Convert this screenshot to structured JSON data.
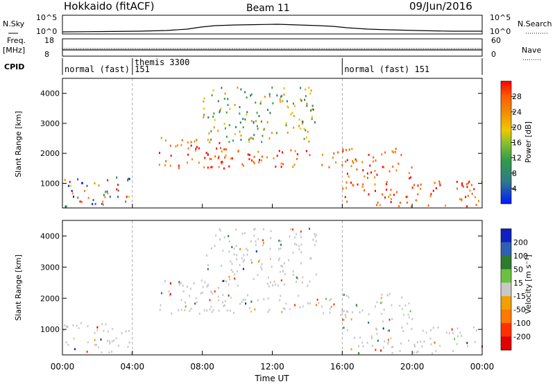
{
  "header": {
    "station": "Hokkaido (fitACF)",
    "beam": "Beam 11",
    "date": "09/Jun/2016"
  },
  "strip_labels": {
    "nsky": "N.Sky",
    "nsearch": "N.Search",
    "freq_line1": "Freq.",
    "freq_line2": "[MHz]",
    "nave": "Nave",
    "cpid": "CPID",
    "nsky_ticks": [
      "10^5",
      "10^0"
    ],
    "nsearch_ticks": [
      "10^5",
      "10^0"
    ],
    "freq_ticks": [
      "18",
      "8"
    ],
    "nave_ticks": [
      "60",
      "0"
    ]
  },
  "cpid_segments": [
    {
      "label": "normal (fast) 151",
      "start_hour": 0,
      "end_hour": 4
    },
    {
      "label": "themis 3300",
      "start_hour": 4,
      "end_hour": 16
    },
    {
      "label": "normal (fast) 151",
      "start_hour": 16,
      "end_hour": 24
    }
  ],
  "x_axis": {
    "label": "Time UT",
    "ticks": [
      "00:00",
      "04:00",
      "08:00",
      "12:00",
      "16:00",
      "20:00",
      "00:00"
    ],
    "range_hours": [
      0,
      24
    ]
  },
  "power_panel": {
    "ylabel": "Slant Range [km]",
    "yticks": [
      1000,
      2000,
      3000,
      4000
    ],
    "ylim": [
      180,
      4500
    ],
    "colorbar_label": "Power [dB]",
    "colorbar_ticks": [
      "4",
      "8",
      "12",
      "16",
      "20",
      "24",
      "28"
    ],
    "colors": [
      "#0018ff",
      "#3050c8",
      "#2f7a6a",
      "#34a044",
      "#e8c000",
      "#f08c00",
      "#ff5a00",
      "#ff0000"
    ]
  },
  "velocity_panel": {
    "ylabel": "Slant Range [km]",
    "yticks": [
      1000,
      2000,
      3000,
      4000
    ],
    "ylim": [
      180,
      4500
    ],
    "colorbar_label": "Velocity [m s⁻¹]",
    "colorbar_ticks": [
      "200",
      "100",
      "50",
      "15",
      "-15",
      "-50",
      "-100",
      "-200"
    ],
    "colors": [
      "#1020c0",
      "#2f60b0",
      "#2e7a30",
      "#6cc040",
      "#c8c8c8",
      "#f0a000",
      "#ff7800",
      "#ff3000",
      "#e00000"
    ]
  },
  "chart_data": {
    "type": "heatmap",
    "x_unit": "hour UT",
    "y_unit": "slant range km",
    "power_regions": [
      {
        "t0": 0.0,
        "t1": 4.0,
        "r0": 250,
        "r1": 1250,
        "level": "mixed-low"
      },
      {
        "t0": 5.5,
        "t1": 9.5,
        "r0": 1500,
        "r1": 2600,
        "level": "high"
      },
      {
        "t0": 8.0,
        "t1": 15.8,
        "r0": 1550,
        "r1": 2150,
        "level": "high"
      },
      {
        "t0": 8.0,
        "t1": 14.5,
        "r0": 2400,
        "r1": 4300,
        "level": "medium"
      },
      {
        "t0": 15.8,
        "t1": 20.0,
        "r0": 1200,
        "r1": 2200,
        "level": "high"
      },
      {
        "t0": 16.0,
        "t1": 24.0,
        "r0": 250,
        "r1": 1100,
        "level": "high"
      }
    ]
  }
}
